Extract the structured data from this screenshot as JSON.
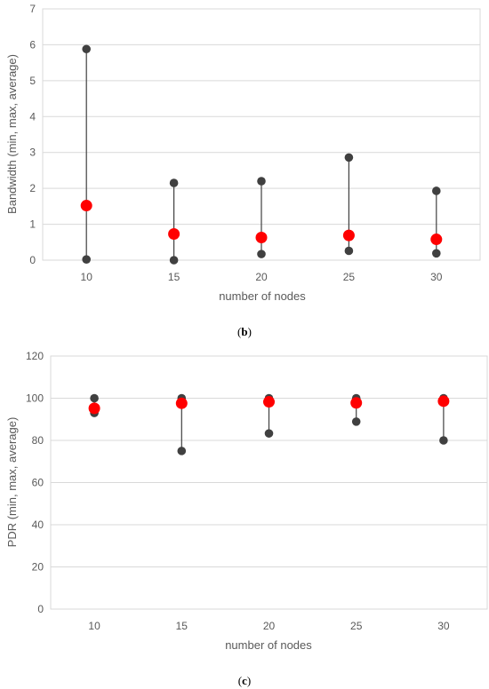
{
  "colors": {
    "range_marker": "#404040",
    "average_marker": "#ff0000",
    "gridline": "#d9d9d9",
    "axis_text": "#595959"
  },
  "chart_data": [
    {
      "type": "scatter",
      "caption_letter": "b",
      "categories": [
        "10",
        "15",
        "20",
        "25",
        "30"
      ],
      "series": [
        {
          "values": [
            0.02,
            0.0,
            0.17,
            0.26,
            0.19
          ]
        },
        {
          "values": [
            5.88,
            2.15,
            2.2,
            2.86,
            1.93
          ]
        },
        {
          "values": [
            1.52,
            0.73,
            0.63,
            0.69,
            0.58
          ]
        }
      ],
      "xlabel": "number of nodes",
      "ylabel": "Bandwidth (min, max, average)",
      "ylim": [
        0,
        7
      ],
      "yticks": [
        "0",
        "1",
        "2",
        "3",
        "4",
        "5",
        "6",
        "7"
      ],
      "grid": true
    },
    {
      "type": "scatter",
      "caption_letter": "c",
      "categories": [
        "10",
        "15",
        "20",
        "25",
        "30"
      ],
      "series": [
        {
          "values": [
            93,
            75,
            83.3,
            88.9,
            80
          ]
        },
        {
          "values": [
            100,
            100,
            100,
            100,
            100
          ]
        },
        {
          "values": [
            95.2,
            97.6,
            98.3,
            97.8,
            98.6
          ]
        }
      ],
      "xlabel": "number of nodes",
      "ylabel": "PDR (min, max, average)",
      "ylim": [
        0,
        120
      ],
      "yticks": [
        "0",
        "20",
        "40",
        "60",
        "80",
        "100",
        "120"
      ],
      "grid": true
    }
  ]
}
